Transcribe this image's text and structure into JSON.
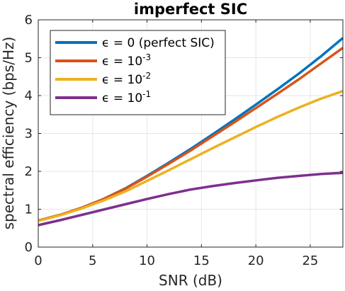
{
  "chart_data": {
    "type": "line",
    "title": "imperfect SIC",
    "xlabel": "SNR (dB)",
    "ylabel": "spectral efficiency (bps/Hz)",
    "xlim": [
      0,
      28
    ],
    "ylim": [
      0,
      6
    ],
    "xticks": [
      0,
      5,
      10,
      15,
      20,
      25
    ],
    "yticks": [
      0,
      1,
      2,
      3,
      4,
      5,
      6
    ],
    "grid": true,
    "legend_position": "top-left",
    "x": [
      0,
      2,
      4,
      6,
      8,
      10,
      12,
      14,
      16,
      18,
      20,
      22,
      24,
      26,
      28
    ],
    "series": [
      {
        "legend_prefix": "ϵ = ",
        "legend_base": "0 (perfect SIC)",
        "legend_exp": "",
        "color": "#0072BD",
        "values": [
          0.7,
          0.85,
          1.04,
          1.27,
          1.55,
          1.88,
          2.23,
          2.59,
          2.97,
          3.36,
          3.76,
          4.17,
          4.59,
          5.04,
          5.52
        ]
      },
      {
        "legend_prefix": "ϵ = ",
        "legend_base": "10",
        "legend_exp": "-3",
        "color": "#D95319",
        "values": [
          0.7,
          0.85,
          1.04,
          1.27,
          1.54,
          1.86,
          2.2,
          2.55,
          2.92,
          3.29,
          3.67,
          4.05,
          4.44,
          4.85,
          5.26
        ]
      },
      {
        "legend_prefix": "ϵ = ",
        "legend_base": "10",
        "legend_exp": "-2",
        "color": "#EDB120",
        "values": [
          0.69,
          0.84,
          1.02,
          1.23,
          1.47,
          1.75,
          2.03,
          2.32,
          2.61,
          2.89,
          3.17,
          3.44,
          3.69,
          3.92,
          4.12
        ]
      },
      {
        "legend_prefix": "ϵ = ",
        "legend_base": "10",
        "legend_exp": "-1",
        "color": "#7E2F8E",
        "values": [
          0.58,
          0.71,
          0.85,
          0.99,
          1.13,
          1.27,
          1.4,
          1.52,
          1.61,
          1.69,
          1.76,
          1.83,
          1.88,
          1.93,
          1.96
        ]
      }
    ]
  }
}
